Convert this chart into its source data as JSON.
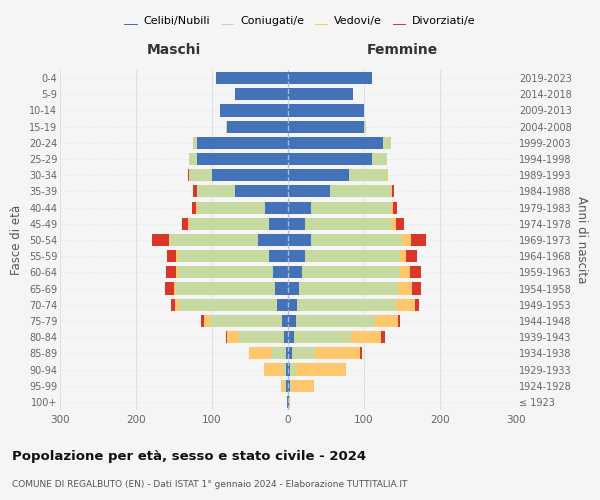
{
  "age_groups": [
    "100+",
    "95-99",
    "90-94",
    "85-89",
    "80-84",
    "75-79",
    "70-74",
    "65-69",
    "60-64",
    "55-59",
    "50-54",
    "45-49",
    "40-44",
    "35-39",
    "30-34",
    "25-29",
    "20-24",
    "15-19",
    "10-14",
    "5-9",
    "0-4"
  ],
  "birth_years": [
    "≤ 1923",
    "1924-1928",
    "1929-1933",
    "1934-1938",
    "1939-1943",
    "1944-1948",
    "1949-1953",
    "1954-1958",
    "1959-1963",
    "1964-1968",
    "1969-1973",
    "1974-1978",
    "1979-1983",
    "1984-1988",
    "1989-1993",
    "1994-1998",
    "1999-2003",
    "2004-2008",
    "2009-2013",
    "2014-2018",
    "2019-2023"
  ],
  "colors": {
    "celibi": "#4472b8",
    "coniugati": "#c5d9a0",
    "vedovi": "#ffc76b",
    "divorziati": "#d9372a"
  },
  "maschi": {
    "celibi": [
      1,
      2,
      2,
      3,
      5,
      8,
      14,
      17,
      20,
      25,
      40,
      25,
      30,
      70,
      100,
      120,
      120,
      80,
      90,
      70,
      95
    ],
    "coniugati": [
      0,
      2,
      5,
      18,
      60,
      95,
      130,
      130,
      125,
      120,
      115,
      105,
      90,
      50,
      30,
      10,
      5,
      2,
      0,
      0,
      0
    ],
    "vedovi": [
      0,
      5,
      25,
      30,
      15,
      8,
      5,
      3,
      3,
      2,
      2,
      2,
      1,
      0,
      0,
      0,
      0,
      0,
      0,
      0,
      0
    ],
    "divorziati": [
      0,
      0,
      0,
      0,
      2,
      3,
      5,
      12,
      12,
      12,
      22,
      8,
      5,
      5,
      2,
      0,
      0,
      0,
      0,
      0,
      0
    ]
  },
  "femmine": {
    "celibi": [
      1,
      2,
      3,
      5,
      8,
      10,
      12,
      15,
      18,
      22,
      30,
      22,
      30,
      55,
      80,
      110,
      125,
      100,
      100,
      85,
      110
    ],
    "coniugati": [
      0,
      2,
      8,
      30,
      75,
      105,
      130,
      130,
      130,
      125,
      120,
      115,
      105,
      80,
      50,
      20,
      10,
      2,
      0,
      0,
      0
    ],
    "vedovi": [
      2,
      30,
      65,
      60,
      40,
      30,
      25,
      18,
      12,
      8,
      12,
      5,
      3,
      2,
      2,
      0,
      0,
      0,
      0,
      0,
      0
    ],
    "divorziati": [
      0,
      0,
      0,
      2,
      5,
      2,
      5,
      12,
      15,
      15,
      20,
      10,
      5,
      3,
      0,
      0,
      0,
      0,
      0,
      0,
      0
    ]
  },
  "title": "Popolazione per età, sesso e stato civile - 2024",
  "subtitle": "COMUNE DI REGALBUTO (EN) - Dati ISTAT 1° gennaio 2024 - Elaborazione TUTTITALIA.IT",
  "xlabel_left": "Maschi",
  "xlabel_right": "Femmine",
  "ylabel": "Fasce di età",
  "ylabel_right": "Anni di nascita",
  "legend_labels": [
    "Celibi/Nubili",
    "Coniugati/e",
    "Vedovi/e",
    "Divorziati/e"
  ],
  "xlim": 300,
  "background": "#f5f5f5"
}
